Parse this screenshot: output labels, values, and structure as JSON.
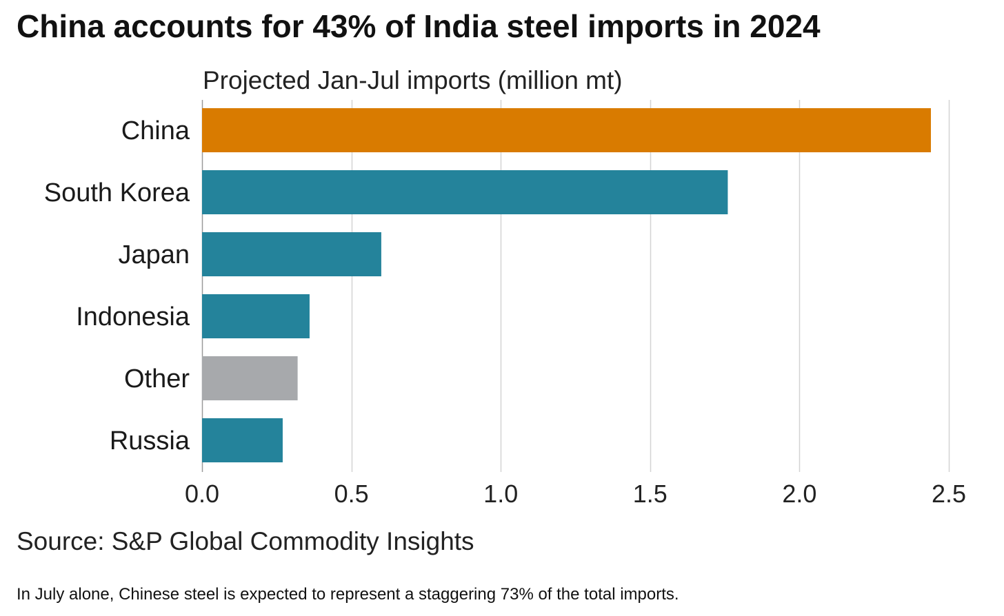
{
  "chart_data": {
    "type": "bar",
    "orientation": "horizontal",
    "title": "China accounts for 43% of India steel imports in 2024",
    "subtitle": "Projected Jan-Jul imports (million mt)",
    "categories": [
      "China",
      "South Korea",
      "Japan",
      "Indonesia",
      "Other",
      "Russia"
    ],
    "values": [
      2.44,
      1.76,
      0.6,
      0.36,
      0.32,
      0.27
    ],
    "colors": [
      "#D97B00",
      "#24839B",
      "#24839B",
      "#24839B",
      "#A7A9AC",
      "#24839B"
    ],
    "xlim": [
      0,
      2.5
    ],
    "xticks": [
      0.0,
      0.5,
      1.0,
      1.5,
      2.0,
      2.5
    ],
    "xtick_labels": [
      "0.0",
      "0.5",
      "1.0",
      "1.5",
      "2.0",
      "2.5"
    ],
    "grid": "vertical",
    "legend": "none"
  },
  "source": "Source: S&P Global Commodity Insights",
  "footnote": "In July alone, Chinese steel is expected to represent a staggering 73% of the total imports."
}
